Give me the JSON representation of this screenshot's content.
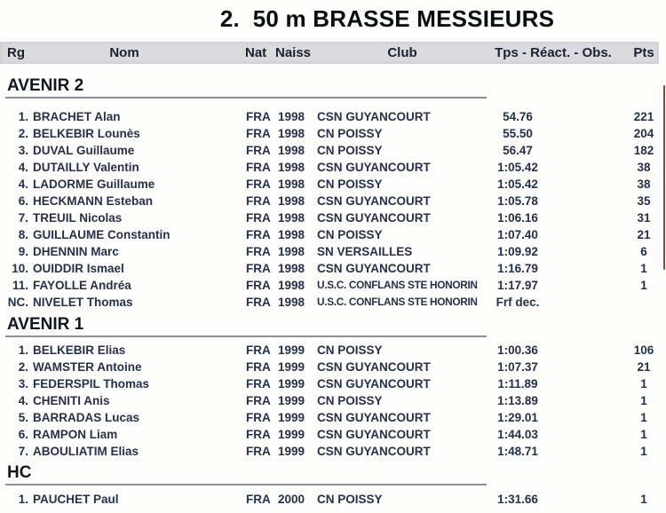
{
  "title": "2.  50 m BRASSE MESSIEURS",
  "columns": {
    "rg": "Rg",
    "nom": "Nom",
    "nat": "Nat",
    "naiss": "Naiss",
    "club": "Club",
    "tps": "Tps - Réact. - Obs.",
    "pts": "Pts"
  },
  "sections": [
    {
      "name": "AVENIR 2",
      "rows": [
        {
          "rg": "1.",
          "nom": "BRACHET Alan",
          "nat": "FRA",
          "naiss": "1998",
          "club": "CSN GUYANCOURT",
          "tps": "54.76",
          "pts": "221"
        },
        {
          "rg": "2.",
          "nom": "BELKEBIR Lounès",
          "nat": "FRA",
          "naiss": "1998",
          "club": "CN POISSY",
          "tps": "55.50",
          "pts": "204"
        },
        {
          "rg": "3.",
          "nom": "DUVAL Guillaume",
          "nat": "FRA",
          "naiss": "1998",
          "club": "CN POISSY",
          "tps": "56.47",
          "pts": "182"
        },
        {
          "rg": "4.",
          "nom": "DUTAILLY Valentin",
          "nat": "FRA",
          "naiss": "1998",
          "club": "CSN GUYANCOURT",
          "tps": "1:05.42",
          "pts": "38"
        },
        {
          "rg": "4.",
          "nom": "LADORME Guillaume",
          "nat": "FRA",
          "naiss": "1998",
          "club": "CN POISSY",
          "tps": "1:05.42",
          "pts": "38"
        },
        {
          "rg": "6.",
          "nom": "HECKMANN Esteban",
          "nat": "FRA",
          "naiss": "1998",
          "club": "CSN GUYANCOURT",
          "tps": "1:05.78",
          "pts": "35"
        },
        {
          "rg": "7.",
          "nom": "TREUIL Nicolas",
          "nat": "FRA",
          "naiss": "1998",
          "club": "CSN GUYANCOURT",
          "tps": "1:06.16",
          "pts": "31"
        },
        {
          "rg": "8.",
          "nom": "GUILLAUME Constantin",
          "nat": "FRA",
          "naiss": "1998",
          "club": "CN POISSY",
          "tps": "1:07.40",
          "pts": "21"
        },
        {
          "rg": "9.",
          "nom": "DHENNIN Marc",
          "nat": "FRA",
          "naiss": "1998",
          "club": "SN VERSAILLES",
          "tps": "1:09.92",
          "pts": "6"
        },
        {
          "rg": "10.",
          "nom": "OUIDDIR Ismael",
          "nat": "FRA",
          "naiss": "1998",
          "club": "CSN GUYANCOURT",
          "tps": "1:16.79",
          "pts": "1"
        },
        {
          "rg": "11.",
          "nom": "FAYOLLE Andréa",
          "nat": "FRA",
          "naiss": "1998",
          "club": "U.S.C. CONFLANS STE HONORIN",
          "tps": "1:17.97",
          "pts": "1"
        },
        {
          "rg": "NC.",
          "nom": "NIVELET Thomas",
          "nat": "FRA",
          "naiss": "1998",
          "club": "U.S.C. CONFLANS STE HONORIN",
          "tps": "Frf dec.",
          "pts": ""
        }
      ]
    },
    {
      "name": "AVENIR 1",
      "rows": [
        {
          "rg": "1.",
          "nom": "BELKEBIR Elias",
          "nat": "FRA",
          "naiss": "1999",
          "club": "CN POISSY",
          "tps": "1:00.36",
          "pts": "106"
        },
        {
          "rg": "2.",
          "nom": "WAMSTER Antoine",
          "nat": "FRA",
          "naiss": "1999",
          "club": "CSN GUYANCOURT",
          "tps": "1:07.37",
          "pts": "21"
        },
        {
          "rg": "3.",
          "nom": "FEDERSPIL Thomas",
          "nat": "FRA",
          "naiss": "1999",
          "club": "CSN GUYANCOURT",
          "tps": "1:11.89",
          "pts": "1"
        },
        {
          "rg": "4.",
          "nom": "CHENITI Anis",
          "nat": "FRA",
          "naiss": "1999",
          "club": "CN POISSY",
          "tps": "1:13.89",
          "pts": "1"
        },
        {
          "rg": "5.",
          "nom": "BARRADAS Lucas",
          "nat": "FRA",
          "naiss": "1999",
          "club": "CSN GUYANCOURT",
          "tps": "1:29.01",
          "pts": "1"
        },
        {
          "rg": "6.",
          "nom": "RAMPON Liam",
          "nat": "FRA",
          "naiss": "1999",
          "club": "CSN GUYANCOURT",
          "tps": "1:44.03",
          "pts": "1"
        },
        {
          "rg": "7.",
          "nom": "ABOULIATIM Elias",
          "nat": "FRA",
          "naiss": "1999",
          "club": "CSN GUYANCOURT",
          "tps": "1:48.71",
          "pts": "1"
        }
      ]
    },
    {
      "name": "HC",
      "rows": [
        {
          "rg": "1.",
          "nom": "PAUCHET Paul",
          "nat": "FRA",
          "naiss": "2000",
          "club": "CN POISSY",
          "tps": "1:31.66",
          "pts": "1"
        }
      ]
    }
  ],
  "colors": {
    "header_band": "#dbdbdf",
    "row_text": "#283049",
    "title_text": "#0c0d12",
    "section_rule": "#8e8e99",
    "scan_artifact": "#6e2c22",
    "paper": "#fdfdfc"
  }
}
